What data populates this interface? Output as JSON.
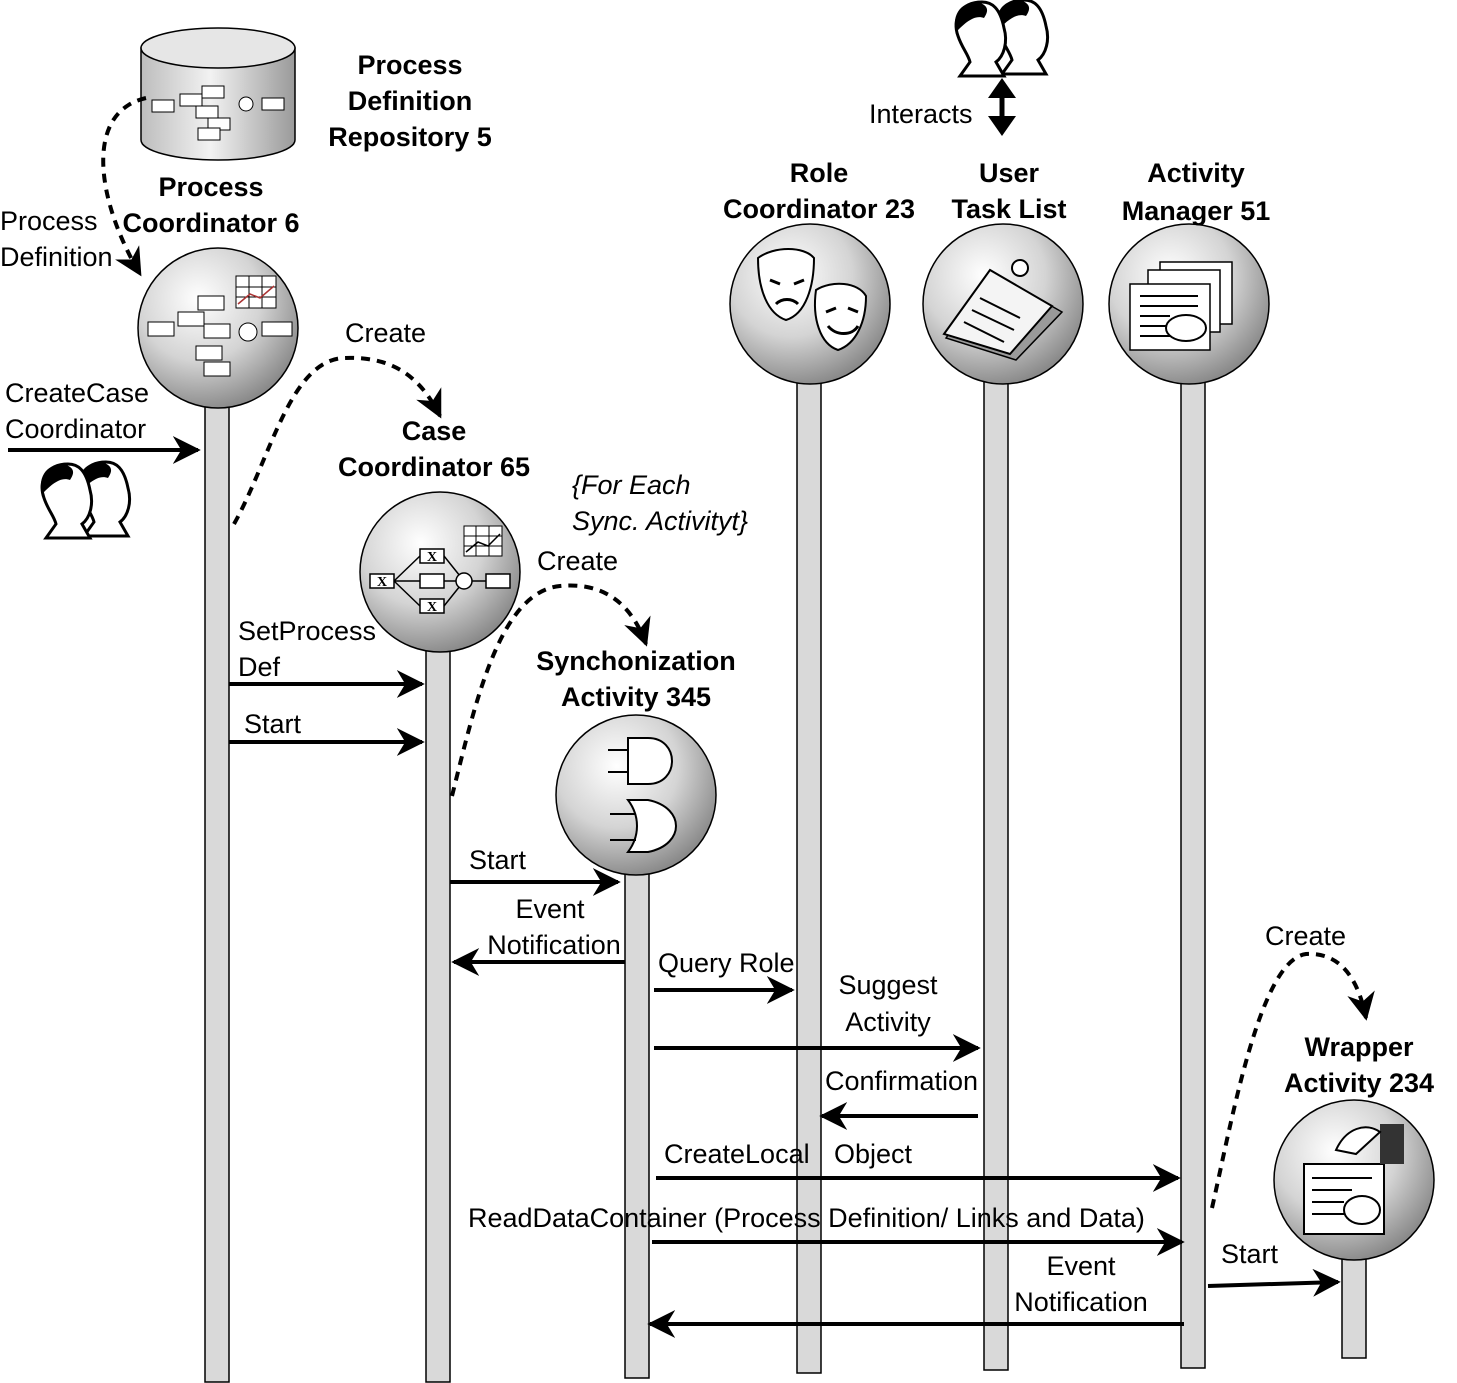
{
  "repository": {
    "line1": "Process",
    "line2": "Definition",
    "line3": "Repository 5"
  },
  "actors": {
    "process_coordinator": {
      "line1": "Process",
      "line2": "Coordinator 6"
    },
    "case_coordinator": {
      "line1": "Case",
      "line2": "Coordinator 65"
    },
    "sync_activity": {
      "line1": "Synchonization",
      "line2": "Activity 345"
    },
    "role_coordinator": {
      "line1": "Role",
      "line2": "Coordinator 23"
    },
    "user_task_list": {
      "line1": "User",
      "line2": "Task List"
    },
    "activity_manager": {
      "line1": "Activity",
      "line2": "Manager 51"
    },
    "wrapper_activity": {
      "line1": "Wrapper",
      "line2": "Activity 234"
    }
  },
  "messages": {
    "process_definition": {
      "line1": "Process",
      "line2": "Definition"
    },
    "create_case_coordinator": {
      "line1": "CreateCase",
      "line2": "Coordinator"
    },
    "create_1": "Create",
    "for_each": {
      "line1": "{For Each",
      "line2": "Sync. Activityt}"
    },
    "create_2": "Create",
    "set_process_def": {
      "line1": "SetProcess",
      "line2": "Def"
    },
    "start_1": "Start",
    "start_2": "Start",
    "event_notification_1": {
      "line1": "Event",
      "line2": "Notification"
    },
    "query_role": "Query Role",
    "suggest_activity": {
      "line1": "Suggest",
      "line2": "Activity"
    },
    "confirmation": "Confirmation",
    "create_local": "CreateLocal",
    "object": "Object",
    "read_data_container": "ReadDataContainer (Process Definition/ Links and Data)",
    "create_3": "Create",
    "start_3": "Start",
    "event_notification_2": {
      "line1": "Event",
      "line2": "Notification"
    },
    "interacts": "Interacts"
  }
}
